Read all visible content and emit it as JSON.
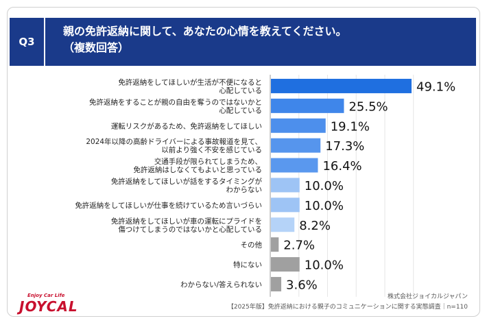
{
  "header": {
    "q_label": "Q3",
    "title": "親の免許返納に関して、あなたの心情を教えてください。\n（複数回答）"
  },
  "chart_data": {
    "type": "bar",
    "orientation": "horizontal",
    "categories": [
      [
        "免許返納をしてほしいが生活が不便になると",
        "心配している"
      ],
      [
        "免許返納をすることが親の自由を奪うのではないかと",
        "心配している"
      ],
      [
        "運転リスクがあるため、免許返納をしてほしい"
      ],
      [
        "2024年以降の高齢ドライバーによる事故報道を見て、",
        "以前より強く不安を感じている"
      ],
      [
        "交通手段が限られてしまうため、",
        "免許返納はしなくてもよいと思っている"
      ],
      [
        "免許返納をしてほしいが話をするタイミングが",
        "わからない"
      ],
      [
        "免許返納をしてほしいが仕事を続けているため言いづらい"
      ],
      [
        "免許返納をしてほしいが車の運転にプライドを",
        "傷つけてしまうのではないかと心配している"
      ],
      [
        "その他"
      ],
      [
        "特にない"
      ],
      [
        "わからない/答えられない"
      ]
    ],
    "values": [
      49.1,
      25.5,
      19.1,
      17.3,
      16.4,
      10.0,
      10.0,
      8.2,
      2.7,
      10.0,
      3.6
    ],
    "value_labels": [
      "49.1%",
      "25.5%",
      "19.1%",
      "17.3%",
      "16.4%",
      "10.0%",
      "10.0%",
      "8.2%",
      "2.7%",
      "10.0%",
      "3.6%"
    ],
    "bar_colors": [
      "#1f6fe0",
      "#3f86ea",
      "#4d8fec",
      "#5695ed",
      "#5a98ee",
      "#9ec4f5",
      "#9ec4f5",
      "#b5d3f8",
      "#a0a0a0",
      "#a0a0a0",
      "#a0a0a0"
    ],
    "xlim": [
      0,
      50
    ],
    "grid": true
  },
  "footer": {
    "logo_tagline": "Enjoy Car Life",
    "logo_text": "JOYCAL",
    "company": "株式会社ジョイカルジャパン",
    "survey": "【2025年版】免許返納における親子のコミュニケーションに関する実態調査｜n=110"
  }
}
